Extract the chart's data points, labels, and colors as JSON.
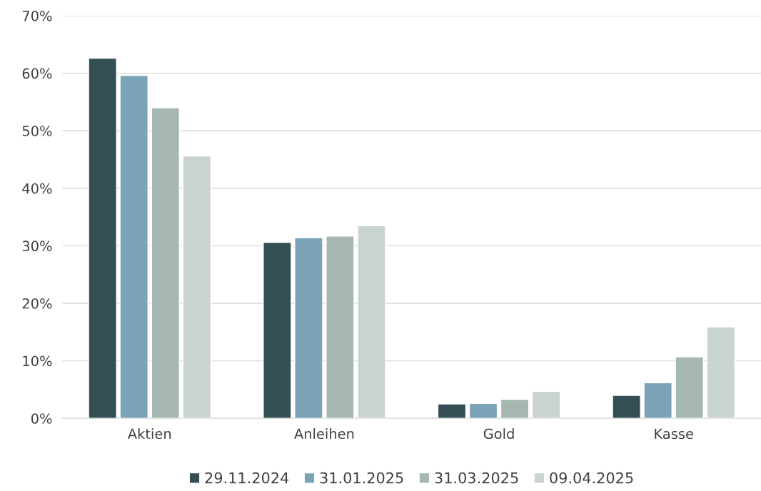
{
  "chart_data": {
    "type": "bar",
    "categories": [
      "Aktien",
      "Anleihen",
      "Gold",
      "Kasse"
    ],
    "series": [
      {
        "name": "29.11.2024",
        "color": "#334e55",
        "values": [
          62.6,
          30.6,
          2.5,
          4.0
        ]
      },
      {
        "name": "31.01.2025",
        "color": "#7ba3b8",
        "values": [
          59.6,
          31.4,
          2.6,
          6.2
        ]
      },
      {
        "name": "31.03.2025",
        "color": "#a5b7b0",
        "values": [
          54.0,
          31.7,
          3.3,
          10.7
        ]
      },
      {
        "name": "09.04.2025",
        "color": "#c9d4d0",
        "values": [
          45.6,
          33.5,
          4.7,
          15.9
        ]
      }
    ],
    "ylim": [
      0,
      70
    ],
    "yticks": [
      {
        "value": 0,
        "label": "0%"
      },
      {
        "value": 10,
        "label": "10%"
      },
      {
        "value": 20,
        "label": "20%"
      },
      {
        "value": 30,
        "label": "30%"
      },
      {
        "value": 40,
        "label": "40%"
      },
      {
        "value": 50,
        "label": "50%"
      },
      {
        "value": 60,
        "label": "60%"
      },
      {
        "value": 70,
        "label": "70%"
      }
    ],
    "grid": "y",
    "legend": "bottom"
  }
}
